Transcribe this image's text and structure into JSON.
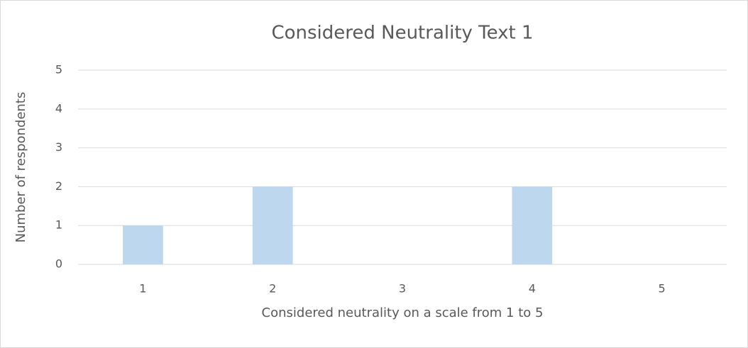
{
  "chart_data": {
    "type": "bar",
    "title": "Considered Neutrality Text 1",
    "x_label": "Considered neutrality on a scale from 1 to 5",
    "y_label": "Number of respondents",
    "categories": [
      "1",
      "2",
      "3",
      "4",
      "5"
    ],
    "values": [
      1,
      2,
      0,
      2,
      0
    ],
    "color": "#bdd7ee",
    "ylim": [
      0,
      5
    ],
    "yticks": [
      0,
      1,
      2,
      3,
      4,
      5
    ],
    "grid": true
  }
}
